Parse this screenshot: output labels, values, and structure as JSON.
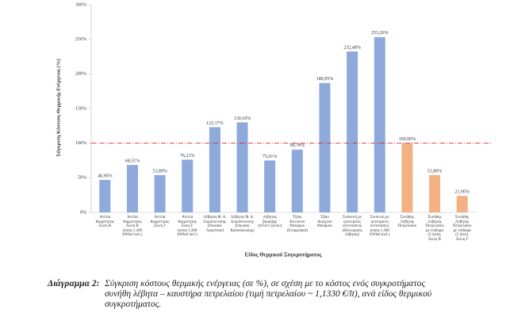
{
  "chart_data": {
    "type": "bar",
    "y_axis_title": "Σύγκριση Κόστους Θερμικής Ενέργειας (%)",
    "x_axis_title": "Είδος Θερμικού Συγκροτήματος",
    "categories": [
      "Αντλία\nθερμότητας\nΖώνη Β",
      "Αντλία\nθερμότητας\nΖώνη Β\n(extra 1.200\nkWhel incl.)",
      "Αντλία\nθερμότητας\nΖώνη Γ",
      "Αντλία\nθερμότητας\nΖώνη Γ\n(extra 1.200\nkWhel incl.)",
      "Λέβητας Φ. Α.\nΣυμπύκνωσης\n(Οικιακό\nΛογιστικό)",
      "Λέβητας Φ. Α.\nΣυμπύκνωσης\n(Οικιακό\nΚατανάλωσης)",
      "Λέβητας\nβιομάζας\n(πέλλετ ξύλου)",
      "Τζάκι\nΚλειστού\nΘαλάμου\n(Ενεργειακό)",
      "Τζάκι\nΑνοιχτού\nΘαλάμου",
      "Συσκευή με\nηλεκτρικές\nαντιστάσεις\n(Ηλεκτρικός\nλέβητας)",
      "Συσκευή με\nηλεκτρικές\nαντιστάσεις\n(extra 1.200\nkWhel incl.)",
      "Συνήθης\nΛέβητας\nΠετρελαίου",
      "Συνήθης\nΛέβητας\nΠετρελαίου\nμε επίδομα\n(2 ήτοι),\nΖώνη Β",
      "Συνήθης\nΛέβητας\nΠετρελαίου\nμε επίδομα\n(2 ήτοι),\nΖώνη Γ"
    ],
    "values": [
      46.9,
      68.51,
      53.89,
      76.21,
      123.17,
      130.1,
      75.01,
      90.78,
      186.95,
      232.48,
      253.26,
      100.0,
      53.89,
      23.9
    ],
    "value_labels": [
      "46,90%",
      "68,51%",
      "53,89%",
      "76,21%",
      "123,17%",
      "130,10%",
      "75,01%",
      "90,78%",
      "186,95%",
      "232,48%",
      "253,26%",
      "100,00%",
      "53,89%",
      "23,90%"
    ],
    "colors": [
      "#8eaadb",
      "#8eaadb",
      "#8eaadb",
      "#8eaadb",
      "#8eaadb",
      "#8eaadb",
      "#8eaadb",
      "#8eaadb",
      "#8eaadb",
      "#8eaadb",
      "#8eaadb",
      "#f4b183",
      "#f4b183",
      "#f4b183"
    ],
    "reference_line": 100,
    "reference_color": "#d62728",
    "ylim": [
      0,
      300
    ],
    "yticks": [
      {
        "value": 0,
        "label": "0%"
      },
      {
        "value": 50,
        "label": "50%"
      },
      {
        "value": 100,
        "label": "100%"
      },
      {
        "value": 150,
        "label": "150%"
      },
      {
        "value": 200,
        "label": "200%"
      },
      {
        "value": 250,
        "label": "250%"
      },
      {
        "value": 300,
        "label": "300%"
      }
    ],
    "grid": false
  },
  "caption": {
    "label": "Διάγραμμα 2:",
    "lines": [
      "Σύγκριση κόστους θερμικής ενέργειας (σε %), σε σχέση με το κόστος ενός συγκροτήματος",
      "συνήθη λέβητα – καυστήρα πετρελαίου (τιμή πετρελαίου ~ 1,1330 €/lt), ανά είδος θερμικού",
      "συγκροτήματος."
    ]
  }
}
